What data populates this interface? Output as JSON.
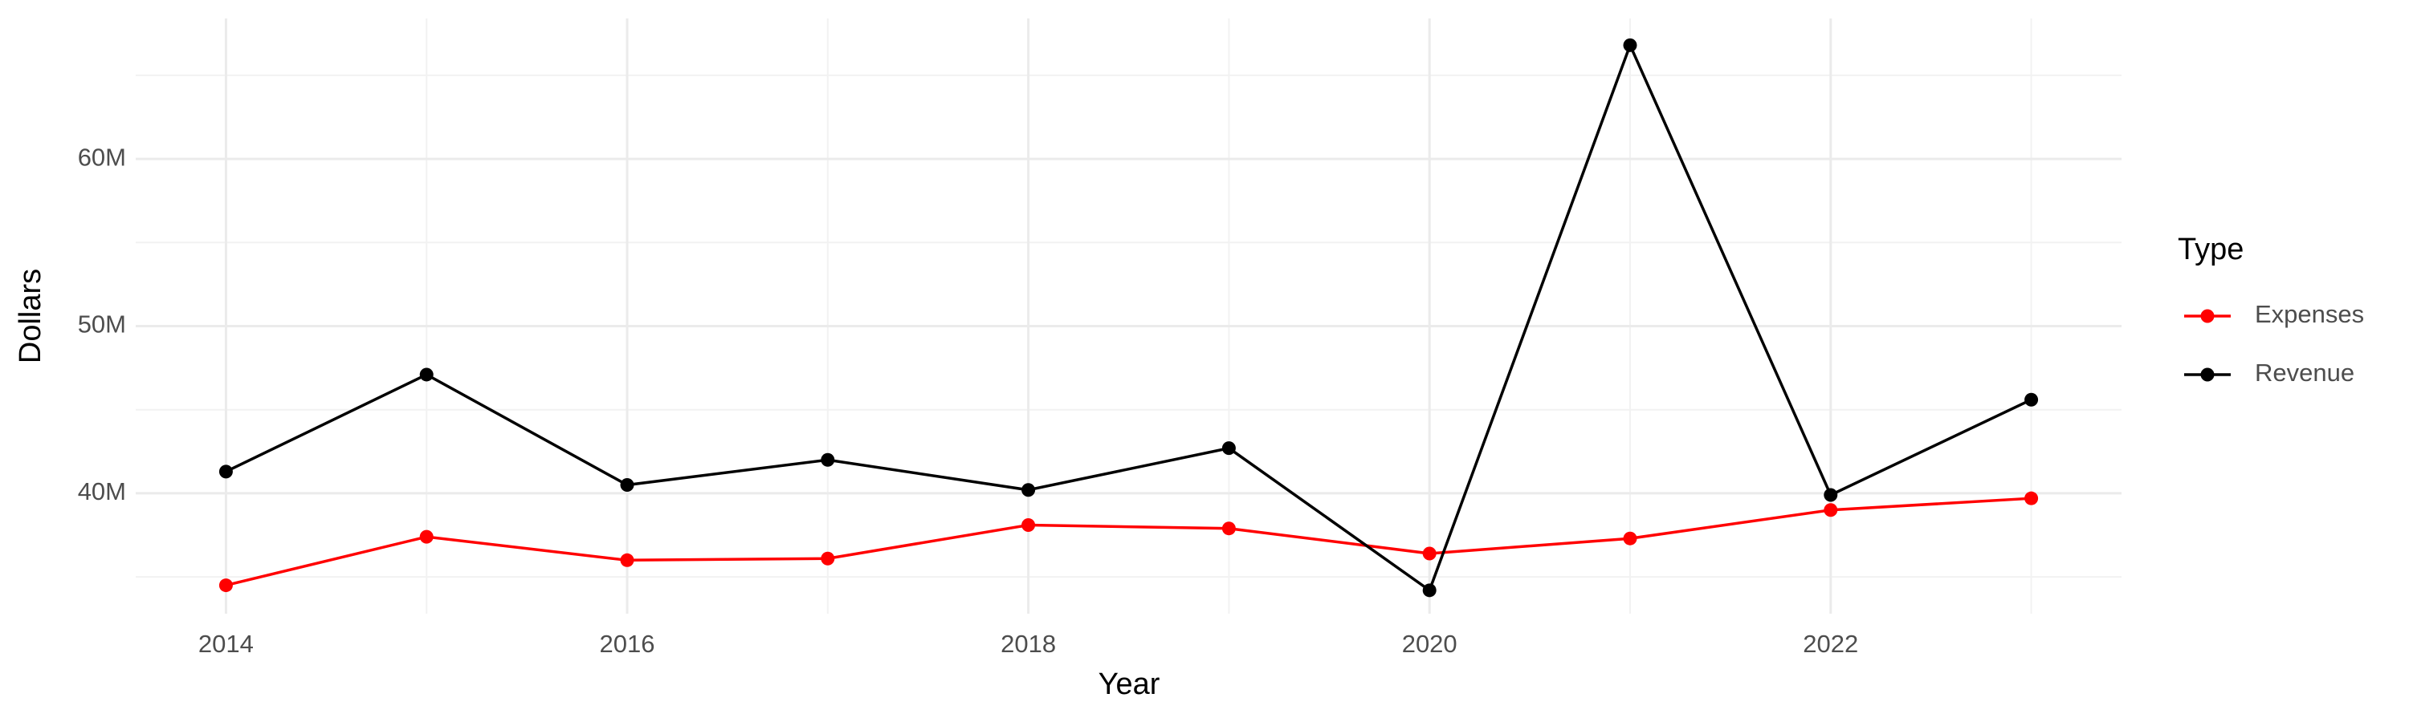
{
  "chart_data": {
    "type": "line",
    "x_label": "Year",
    "y_label": "Dollars",
    "x": [
      2014,
      2015,
      2016,
      2017,
      2018,
      2019,
      2020,
      2021,
      2022,
      2023
    ],
    "series": [
      {
        "name": "Expenses",
        "color": "#ff0000",
        "values": [
          34500000,
          37400000,
          36000000,
          36100000,
          38100000,
          37900000,
          36400000,
          37300000,
          39000000,
          39700000
        ]
      },
      {
        "name": "Revenue",
        "color": "#000000",
        "values": [
          41300000,
          47100000,
          40500000,
          42000000,
          40200000,
          42700000,
          34200000,
          66800000,
          39900000,
          45600000
        ]
      }
    ],
    "xlim": [
      2013.55,
      2023.45
    ],
    "xticks": [
      2014,
      2016,
      2018,
      2020,
      2022
    ],
    "ylim": [
      32800000,
      68400000
    ],
    "yticks": [
      {
        "value": 40000000,
        "label": "40M"
      },
      {
        "value": 50000000,
        "label": "50M"
      },
      {
        "value": 60000000,
        "label": "60M"
      }
    ],
    "grid": true,
    "minor_grid": true,
    "legend_title": "Type",
    "legend_position": "right"
  }
}
